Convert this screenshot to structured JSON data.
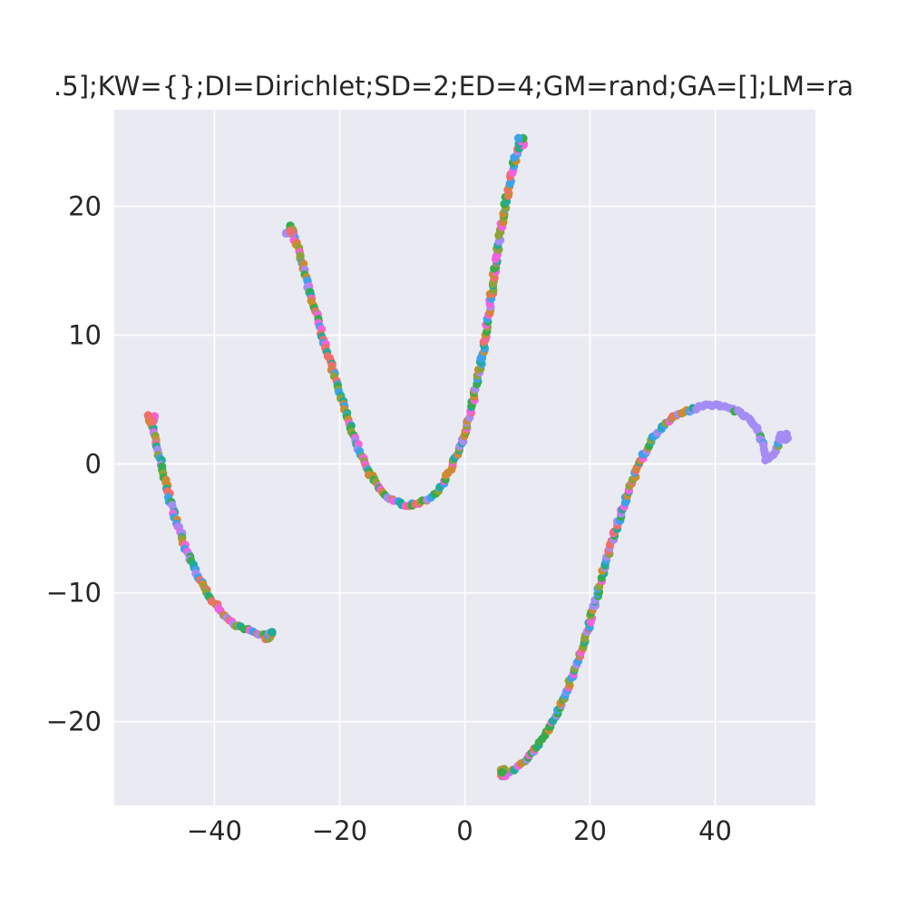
{
  "chart_data": {
    "type": "scatter",
    "title": ".5];KW={};DI=Dirichlet;SD=2;ED=4;GM=rand;GA=[];LM=ra",
    "xlabel": "",
    "ylabel": "",
    "xlim": [
      -56,
      56
    ],
    "ylim": [
      -26.5,
      27.5
    ],
    "xticks": [
      -40,
      -20,
      0,
      20,
      40
    ],
    "yticks": [
      -20,
      -10,
      0,
      10,
      20
    ],
    "xtick_labels": [
      "−40",
      "−20",
      "0",
      "20",
      "40"
    ],
    "ytick_labels": [
      "−20",
      "−10",
      "0",
      "10",
      "20"
    ],
    "grid": true,
    "legend": "none",
    "background_color": "#eaeaf2",
    "grid_color": "#ffffff",
    "palette": [
      "#f461dd",
      "#3ba3ec",
      "#21ab9a",
      "#36ad4a",
      "#8da33a",
      "#cd8b30",
      "#ef6f6a",
      "#a48cf4"
    ],
    "curves": [
      {
        "name": "",
        "points": [
          [
            -50.2,
            3.6
          ],
          [
            -49.8,
            2.5
          ],
          [
            -49.3,
            1.5
          ],
          [
            -48.6,
            0.2
          ],
          [
            -47.9,
            -1.2
          ],
          [
            -47.2,
            -2.6
          ],
          [
            -46.4,
            -3.9
          ],
          [
            -45.5,
            -5.2
          ],
          [
            -44.6,
            -6.5
          ],
          [
            -43.5,
            -7.8
          ],
          [
            -42.3,
            -9.0
          ],
          [
            -41.1,
            -10.0
          ],
          [
            -39.7,
            -11.0
          ],
          [
            -38.3,
            -11.8
          ],
          [
            -36.8,
            -12.4
          ],
          [
            -35.3,
            -12.8
          ],
          [
            -33.8,
            -13.1
          ],
          [
            -32.4,
            -13.2
          ],
          [
            -31.3,
            -13.3
          ]
        ]
      },
      {
        "name": "",
        "points": [
          [
            -27.9,
            18.2
          ],
          [
            -26.8,
            17.0
          ],
          [
            -25.7,
            15.0
          ],
          [
            -24.6,
            13.0
          ],
          [
            -23.5,
            11.3
          ],
          [
            -22.4,
            9.5
          ],
          [
            -21.3,
            7.6
          ],
          [
            -20.2,
            5.8
          ],
          [
            -19.1,
            4.2
          ],
          [
            -18.0,
            2.5
          ],
          [
            -16.9,
            1.0
          ],
          [
            -15.6,
            -0.4
          ],
          [
            -14.2,
            -1.5
          ],
          [
            -12.8,
            -2.4
          ],
          [
            -11.2,
            -2.9
          ],
          [
            -9.5,
            -3.2
          ],
          [
            -7.8,
            -3.1
          ],
          [
            -6.2,
            -2.8
          ],
          [
            -4.7,
            -2.3
          ],
          [
            -3.5,
            -1.5
          ],
          [
            -2.5,
            -0.6
          ],
          [
            -1.5,
            0.4
          ],
          [
            -0.6,
            1.6
          ],
          [
            0.4,
            3.0
          ],
          [
            1.3,
            4.8
          ],
          [
            2.2,
            6.8
          ],
          [
            3.0,
            9.0
          ],
          [
            3.8,
            11.5
          ],
          [
            4.5,
            14.0
          ],
          [
            5.3,
            16.8
          ],
          [
            6.2,
            19.5
          ],
          [
            7.2,
            22.0
          ],
          [
            8.2,
            24.0
          ],
          [
            9.1,
            25.0
          ]
        ]
      },
      {
        "name": "",
        "points": [
          [
            5.8,
            -24.0
          ],
          [
            7.5,
            -23.8
          ],
          [
            9.5,
            -23.1
          ],
          [
            11.5,
            -22.0
          ],
          [
            13.5,
            -20.5
          ],
          [
            15.3,
            -18.7
          ],
          [
            17.0,
            -16.7
          ],
          [
            18.5,
            -14.6
          ],
          [
            19.9,
            -12.4
          ],
          [
            21.2,
            -10.1
          ],
          [
            22.4,
            -7.9
          ],
          [
            23.6,
            -5.8
          ],
          [
            24.9,
            -3.9
          ],
          [
            26.3,
            -2.0
          ],
          [
            27.6,
            -0.3
          ],
          [
            28.9,
            1.1
          ],
          [
            30.3,
            2.2
          ],
          [
            31.8,
            3.0
          ],
          [
            33.3,
            3.6
          ],
          [
            34.9,
            4.0
          ],
          [
            36.5,
            4.3
          ],
          [
            38.2,
            4.5
          ],
          [
            40.0,
            4.6
          ],
          [
            41.8,
            4.4
          ],
          [
            43.5,
            4.1
          ],
          [
            45.0,
            3.7
          ],
          [
            46.2,
            3.1
          ],
          [
            47.2,
            2.2
          ],
          [
            47.8,
            1.2
          ],
          [
            48.2,
            0.4
          ],
          [
            49.0,
            0.6
          ],
          [
            50.0,
            1.4
          ],
          [
            50.9,
            2.2
          ]
        ]
      }
    ]
  }
}
